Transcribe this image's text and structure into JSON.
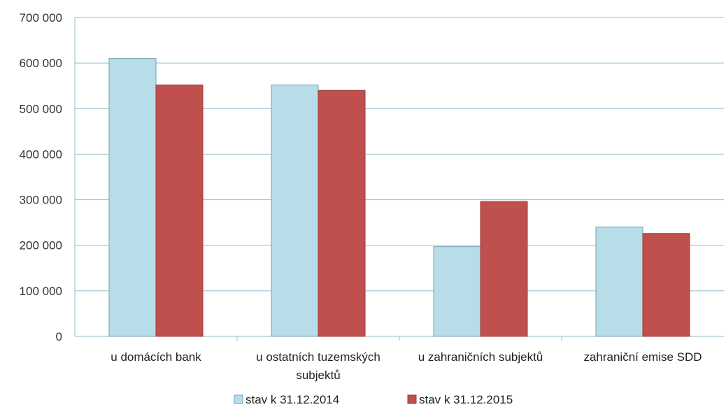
{
  "chart_data": {
    "type": "bar",
    "title": "",
    "xlabel": "",
    "ylabel": "",
    "categories": [
      [
        "u domácích bank"
      ],
      [
        "u ostatních tuzemských",
        "subjektů"
      ],
      [
        "u zahraničních subjektů"
      ],
      [
        "zahraniční emise SDD"
      ]
    ],
    "series": [
      {
        "name": "stav k 31.12.2014",
        "color": "#b7dde8",
        "stroke": "#6fa3b5",
        "values": [
          610000,
          552000,
          197000,
          240000
        ]
      },
      {
        "name": "stav k 31.12.2015",
        "color": "#c0504d",
        "stroke": "#9c3b39",
        "values": [
          552000,
          540000,
          296000,
          226000
        ]
      }
    ],
    "ylim": [
      0,
      700000
    ],
    "yticks": [
      0,
      100000,
      200000,
      300000,
      400000,
      500000,
      600000,
      700000
    ],
    "ytick_labels": [
      "0",
      "100 000",
      "200 000",
      "300 000",
      "400 000",
      "500 000",
      "600 000",
      "700 000"
    ],
    "grid": true,
    "grid_color": "#8fbfc9",
    "legend_position": "bottom"
  }
}
